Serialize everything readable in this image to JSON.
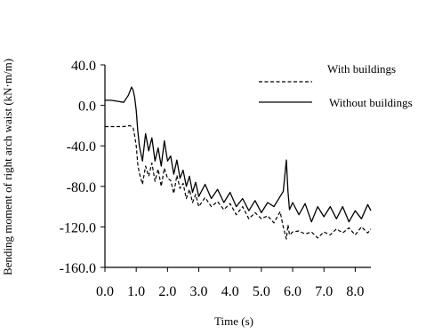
{
  "chart_data": {
    "type": "line",
    "xlabel": "Time (s)",
    "ylabel": "Bending moment of right arch waist (kN·m/m)",
    "xlim": [
      0.0,
      8.5
    ],
    "ylim": [
      -160.0,
      40.0
    ],
    "xticks": [
      "0.0",
      "1.0",
      "2.0",
      "3.0",
      "4.0",
      "5.0",
      "6.0",
      "7.0",
      "8.0"
    ],
    "yticks": [
      "40.0",
      "0.0",
      "-40.0",
      "-80.0",
      "-120.0",
      "-160.0"
    ],
    "legend_position": "top-right",
    "grid": false,
    "series": [
      {
        "name": "With buildings",
        "style": "dashed",
        "color": "#000000",
        "x": [
          0.0,
          0.3,
          0.6,
          0.8,
          0.9,
          0.95,
          1.0,
          1.05,
          1.1,
          1.2,
          1.3,
          1.4,
          1.5,
          1.6,
          1.7,
          1.8,
          1.9,
          2.0,
          2.1,
          2.2,
          2.3,
          2.4,
          2.5,
          2.6,
          2.7,
          2.8,
          2.9,
          3.0,
          3.2,
          3.4,
          3.6,
          3.8,
          4.0,
          4.2,
          4.4,
          4.6,
          4.8,
          5.0,
          5.2,
          5.4,
          5.6,
          5.7,
          5.8,
          5.85,
          5.9,
          6.0,
          6.2,
          6.4,
          6.6,
          6.8,
          7.0,
          7.2,
          7.4,
          7.6,
          7.8,
          8.0,
          8.2,
          8.4,
          8.5
        ],
        "y": [
          -21,
          -21,
          -21,
          -20,
          -22,
          -30,
          -40,
          -58,
          -67,
          -78,
          -60,
          -70,
          -57,
          -75,
          -63,
          -80,
          -62,
          -72,
          -74,
          -87,
          -69,
          -82,
          -77,
          -92,
          -83,
          -96,
          -88,
          -100,
          -91,
          -100,
          -95,
          -103,
          -97,
          -108,
          -100,
          -112,
          -106,
          -112,
          -109,
          -116,
          -105,
          -120,
          -132,
          -118,
          -128,
          -125,
          -124,
          -127,
          -125,
          -131,
          -125,
          -128,
          -122,
          -126,
          -121,
          -128,
          -120,
          -126,
          -122
        ]
      },
      {
        "name": "Without buildings",
        "style": "solid",
        "color": "#000000",
        "x": [
          0.0,
          0.2,
          0.4,
          0.6,
          0.75,
          0.85,
          0.9,
          0.95,
          1.0,
          1.05,
          1.1,
          1.2,
          1.3,
          1.4,
          1.5,
          1.6,
          1.7,
          1.8,
          1.9,
          2.0,
          2.1,
          2.2,
          2.3,
          2.4,
          2.5,
          2.6,
          2.7,
          2.8,
          2.9,
          3.0,
          3.2,
          3.4,
          3.6,
          3.8,
          4.0,
          4.2,
          4.4,
          4.6,
          4.8,
          5.0,
          5.2,
          5.4,
          5.6,
          5.7,
          5.8,
          5.85,
          5.9,
          6.0,
          6.2,
          6.4,
          6.6,
          6.8,
          7.0,
          7.2,
          7.4,
          7.6,
          7.8,
          8.0,
          8.2,
          8.4,
          8.5
        ],
        "y": [
          5,
          5,
          4,
          3,
          10,
          18,
          15,
          8,
          -5,
          -25,
          -40,
          -55,
          -28,
          -45,
          -32,
          -55,
          -42,
          -60,
          -35,
          -55,
          -50,
          -68,
          -54,
          -72,
          -64,
          -80,
          -70,
          -86,
          -76,
          -90,
          -78,
          -92,
          -83,
          -96,
          -86,
          -100,
          -92,
          -104,
          -94,
          -106,
          -96,
          -100,
          -90,
          -85,
          -54,
          -85,
          -103,
          -96,
          -108,
          -97,
          -115,
          -100,
          -110,
          -100,
          -112,
          -100,
          -115,
          -104,
          -112,
          -98,
          -104
        ]
      }
    ]
  }
}
